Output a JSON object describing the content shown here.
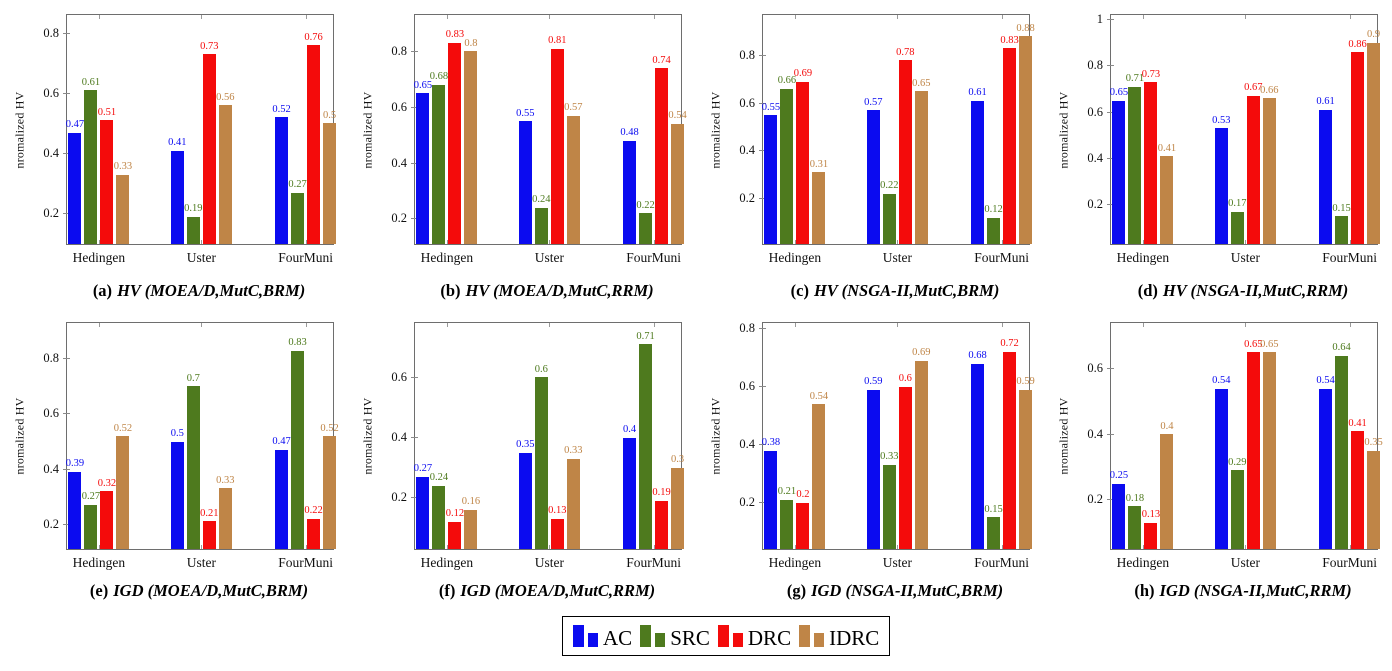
{
  "colors": {
    "AC": "#0b0bf0",
    "SRC": "#4e7a1e",
    "DRC": "#f40b0b",
    "IDRC": "#bf8547"
  },
  "legend": {
    "entries": [
      {
        "label": "AC"
      },
      {
        "label": "SRC"
      },
      {
        "label": "DRC"
      },
      {
        "label": "IDRC"
      }
    ]
  },
  "chart_data": [
    {
      "id": "a",
      "type": "bar",
      "caption_prefix": "(a)",
      "caption_title": "HV (MOEA/D,MutC,BRM)",
      "ylabel": "nromalized HV",
      "categories": [
        "Hedingen",
        "Uster",
        "FourMuni"
      ],
      "series": [
        {
          "name": "AC",
          "values": [
            0.47,
            0.41,
            0.52
          ]
        },
        {
          "name": "SRC",
          "values": [
            0.61,
            0.19,
            0.27
          ]
        },
        {
          "name": "DRC",
          "values": [
            0.51,
            0.73,
            0.76
          ]
        },
        {
          "name": "IDRC",
          "values": [
            0.33,
            0.56,
            0.5
          ]
        }
      ],
      "yticks": [
        0.2,
        0.4,
        0.6,
        0.8
      ],
      "ylim": [
        0.1,
        0.86
      ],
      "grid": false
    },
    {
      "id": "b",
      "type": "bar",
      "caption_prefix": "(b)",
      "caption_title": "HV (MOEA/D,MutC,RRM)",
      "ylabel": "nromalized HV",
      "categories": [
        "Hedingen",
        "Uster",
        "FourMuni"
      ],
      "series": [
        {
          "name": "AC",
          "values": [
            0.65,
            0.55,
            0.48
          ]
        },
        {
          "name": "SRC",
          "values": [
            0.68,
            0.24,
            0.22
          ]
        },
        {
          "name": "DRC",
          "values": [
            0.83,
            0.81,
            0.74
          ]
        },
        {
          "name": "IDRC",
          "values": [
            0.8,
            0.57,
            0.54
          ]
        }
      ],
      "yticks": [
        0.2,
        0.4,
        0.6,
        0.8
      ],
      "ylim": [
        0.11,
        0.93
      ],
      "grid": false
    },
    {
      "id": "c",
      "type": "bar",
      "caption_prefix": "(c)",
      "caption_title": "HV (NSGA-II,MutC,BRM)",
      "ylabel": "nromalized HV",
      "categories": [
        "Hedingen",
        "Uster",
        "FourMuni"
      ],
      "series": [
        {
          "name": "AC",
          "values": [
            0.55,
            0.57,
            0.61
          ]
        },
        {
          "name": "SRC",
          "values": [
            0.66,
            0.22,
            0.12
          ]
        },
        {
          "name": "DRC",
          "values": [
            0.69,
            0.78,
            0.83
          ]
        },
        {
          "name": "IDRC",
          "values": [
            0.31,
            0.65,
            0.88
          ]
        }
      ],
      "yticks": [
        0.2,
        0.4,
        0.6,
        0.8
      ],
      "ylim": [
        0.01,
        0.97
      ],
      "grid": false
    },
    {
      "id": "d",
      "type": "bar",
      "caption_prefix": "(d)",
      "caption_title": "HV (NSGA-II,MutC,RRM)",
      "ylabel": "nromalized HV",
      "categories": [
        "Hedingen",
        "Uster",
        "FourMuni"
      ],
      "series": [
        {
          "name": "AC",
          "values": [
            0.65,
            0.53,
            0.61
          ]
        },
        {
          "name": "SRC",
          "values": [
            0.71,
            0.17,
            0.15
          ]
        },
        {
          "name": "DRC",
          "values": [
            0.73,
            0.67,
            0.86
          ]
        },
        {
          "name": "IDRC",
          "values": [
            0.41,
            0.66,
            0.9
          ]
        }
      ],
      "yticks": [
        0.2,
        0.4,
        0.6,
        0.8,
        1
      ],
      "ylim": [
        0.03,
        1.02
      ],
      "grid": false
    },
    {
      "id": "e",
      "type": "bar",
      "caption_prefix": "(e)",
      "caption_title": "IGD (MOEA/D,MutC,BRM)",
      "ylabel": "nromalized HV",
      "categories": [
        "Hedingen",
        "Uster",
        "FourMuni"
      ],
      "series": [
        {
          "name": "AC",
          "values": [
            0.39,
            0.5,
            0.47
          ]
        },
        {
          "name": "SRC",
          "values": [
            0.27,
            0.7,
            0.83
          ]
        },
        {
          "name": "DRC",
          "values": [
            0.32,
            0.21,
            0.22
          ]
        },
        {
          "name": "IDRC",
          "values": [
            0.52,
            0.33,
            0.52
          ]
        }
      ],
      "yticks": [
        0.2,
        0.4,
        0.6,
        0.8
      ],
      "ylim": [
        0.11,
        0.93
      ],
      "grid": false
    },
    {
      "id": "f",
      "type": "bar",
      "caption_prefix": "(f)",
      "caption_title": "IGD (MOEA/D,MutC,RRM)",
      "ylabel": "nromalized HV",
      "categories": [
        "Hedingen",
        "Uster",
        "FourMuni"
      ],
      "series": [
        {
          "name": "AC",
          "values": [
            0.27,
            0.35,
            0.4
          ]
        },
        {
          "name": "SRC",
          "values": [
            0.24,
            0.6,
            0.71
          ]
        },
        {
          "name": "DRC",
          "values": [
            0.12,
            0.13,
            0.19
          ]
        },
        {
          "name": "IDRC",
          "values": [
            0.16,
            0.33,
            0.3
          ]
        }
      ],
      "yticks": [
        0.2,
        0.4,
        0.6
      ],
      "ylim": [
        0.03,
        0.78
      ],
      "grid": false
    },
    {
      "id": "g",
      "type": "bar",
      "caption_prefix": "(g)",
      "caption_title": "IGD (NSGA-II,MutC,BRM)",
      "ylabel": "nromalized HV",
      "categories": [
        "Hedingen",
        "Uster",
        "FourMuni"
      ],
      "series": [
        {
          "name": "AC",
          "values": [
            0.38,
            0.59,
            0.68
          ]
        },
        {
          "name": "SRC",
          "values": [
            0.21,
            0.33,
            0.15
          ]
        },
        {
          "name": "DRC",
          "values": [
            0.2,
            0.6,
            0.72
          ]
        },
        {
          "name": "IDRC",
          "values": [
            0.54,
            0.69,
            0.59
          ]
        }
      ],
      "yticks": [
        0.2,
        0.4,
        0.6,
        0.8
      ],
      "ylim": [
        0.04,
        0.82
      ],
      "grid": false
    },
    {
      "id": "h",
      "type": "bar",
      "caption_prefix": "(h)",
      "caption_title": "IGD (NSGA-II,MutC,RRM)",
      "ylabel": "nromalized HV",
      "categories": [
        "Hedingen",
        "Uster",
        "FourMuni"
      ],
      "series": [
        {
          "name": "AC",
          "values": [
            0.25,
            0.54,
            0.54
          ]
        },
        {
          "name": "SRC",
          "values": [
            0.18,
            0.29,
            0.64
          ]
        },
        {
          "name": "DRC",
          "values": [
            0.13,
            0.65,
            0.41
          ]
        },
        {
          "name": "IDRC",
          "values": [
            0.4,
            0.65,
            0.35
          ]
        }
      ],
      "yticks": [
        0.2,
        0.4,
        0.6
      ],
      "ylim": [
        0.05,
        0.74
      ],
      "grid": false
    }
  ]
}
